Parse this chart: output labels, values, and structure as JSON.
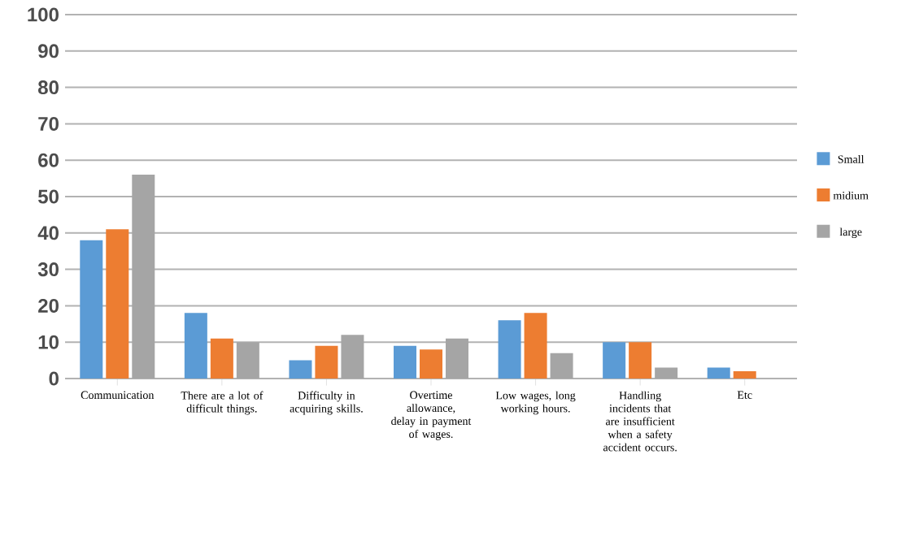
{
  "chart_data": {
    "type": "bar",
    "categories": [
      "Communication",
      "There are a lot of difficult things.",
      "Difficulty in acquiring skills.",
      "Overtime allowance, delay in payment of wages.",
      "Low wages, long working hours.",
      "Handling incidents that are insufficient when a safety accident occurs.",
      "Etc"
    ],
    "series": [
      {
        "name": "Small",
        "color": "#5b9bd5",
        "values": [
          38,
          18,
          5,
          9,
          16,
          10,
          3
        ]
      },
      {
        "name": "midium",
        "color": "#ed7d31",
        "values": [
          41,
          11,
          9,
          8,
          18,
          10,
          2
        ]
      },
      {
        "name": "large",
        "color": "#a5a5a5",
        "values": [
          56,
          10,
          12,
          11,
          7,
          3,
          null
        ]
      }
    ],
    "ylim": [
      0,
      100
    ],
    "yticks": [
      0,
      10,
      20,
      30,
      40,
      50,
      60,
      70,
      80,
      90,
      100
    ],
    "grid": "y",
    "legend": "right"
  }
}
